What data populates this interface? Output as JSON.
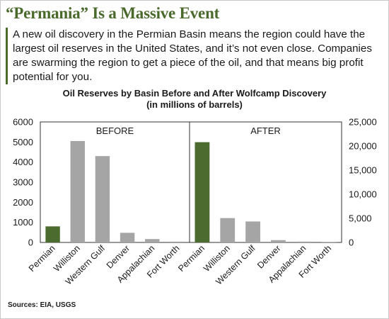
{
  "header": {
    "title": "“Permania” Is a Massive Event",
    "intro": "A new oil discovery in the Permian Basin means the region could have the largest oil reserves in the United States, and it’s not even close. Companies are swarming the region to get a piece of the oil, and that means big profit potential for you."
  },
  "footer": {
    "sources": "Sources: EIA, USGS"
  },
  "colors": {
    "highlight": "#4b6b2f",
    "bar": "#a5a5a5",
    "axis": "#333333"
  },
  "chart_data": {
    "type": "bar",
    "title": "Oil Reserves by Basin Before and After Wolfcamp Discovery",
    "subtitle": "(in millions of barrels)",
    "grid": false,
    "legend": "none",
    "panels": [
      {
        "label": "BEFORE",
        "axis_side": "left",
        "ylim": [
          0,
          6000
        ],
        "yticks": [
          "0",
          "1000",
          "2000",
          "3000",
          "4000",
          "5000",
          "6000"
        ],
        "categories": [
          "Permian",
          "Williston",
          "Western Gulf",
          "Denver",
          "Appalachian",
          "Fort Worth"
        ],
        "values": [
          800,
          5050,
          4300,
          480,
          170,
          40
        ],
        "highlight_index": 0
      },
      {
        "label": "AFTER",
        "axis_side": "right",
        "ylim": [
          0,
          25000
        ],
        "yticks": [
          "0",
          "5,000",
          "10,000",
          "15,000",
          "20,000",
          "25,000"
        ],
        "categories": [
          "Permian",
          "Williston",
          "Western Gulf",
          "Denver",
          "Appalachian",
          "Fort Worth"
        ],
        "values": [
          20800,
          5050,
          4350,
          480,
          170,
          40
        ],
        "highlight_index": 0
      }
    ]
  }
}
